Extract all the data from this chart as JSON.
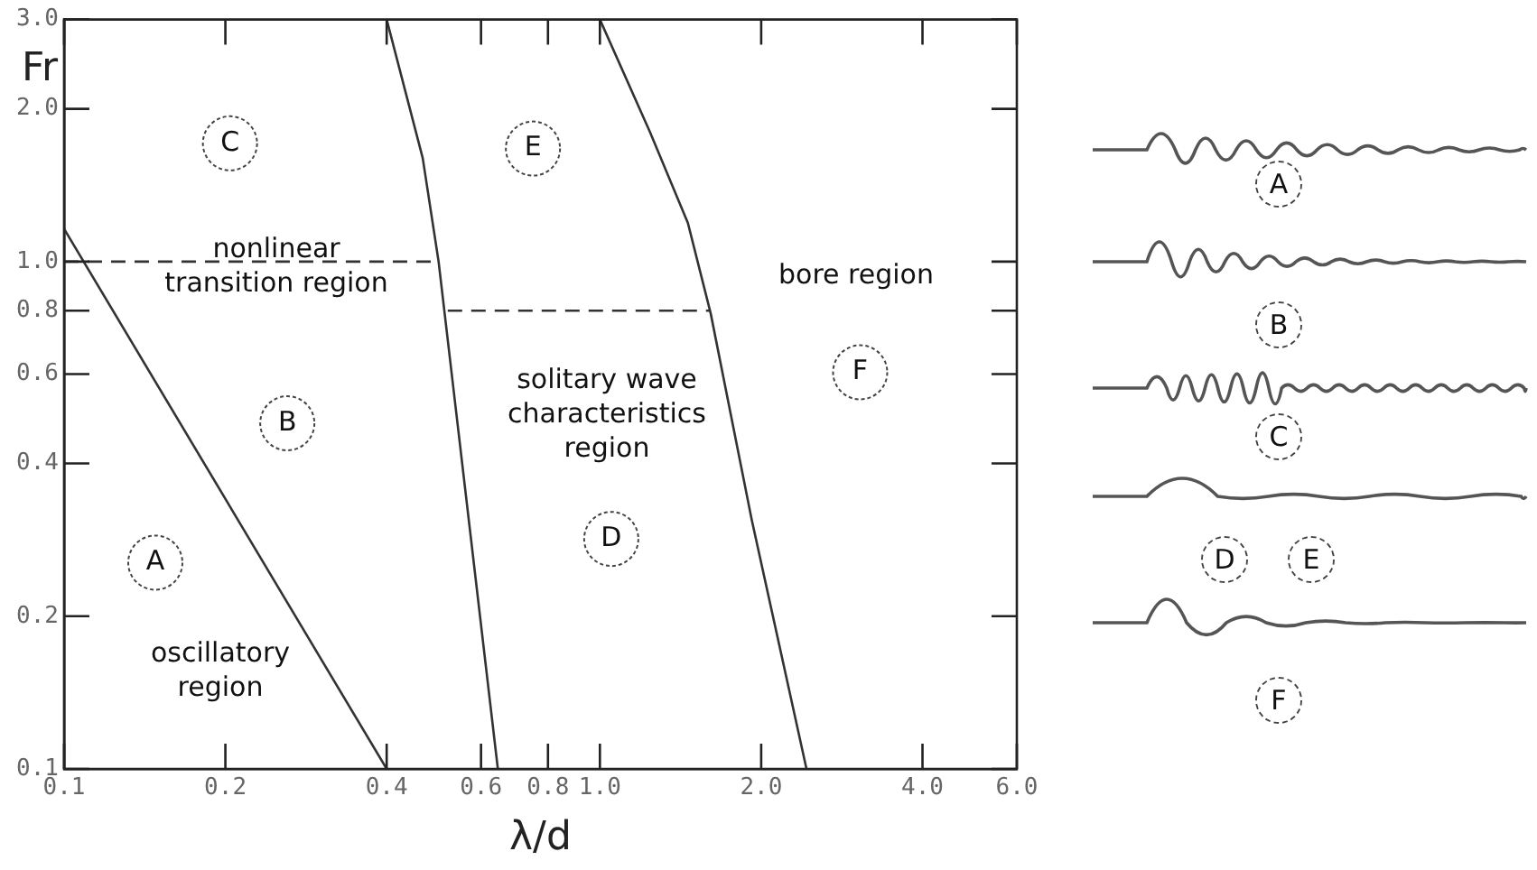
{
  "chart_data": {
    "type": "line",
    "xlabel": "λ/d",
    "ylabel": "Fr",
    "log": "xy",
    "grid": false,
    "legend": false,
    "marker": "none",
    "xlim": [
      0.1,
      6.0
    ],
    "ylim": [
      0.1,
      3.0
    ],
    "xticks": [
      0.1,
      0.2,
      0.4,
      0.6,
      0.8,
      {
        "value": 1,
        "label": "1.0"
      },
      {
        "value": 2,
        "label": "2.0"
      },
      {
        "value": 4,
        "label": "4.0"
      },
      {
        "value": 6,
        "label": "6.0"
      }
    ],
    "yticks": [
      0.1,
      0.2,
      0.4,
      0.6,
      0.8,
      {
        "value": 1,
        "label": "1.0"
      },
      {
        "value": 2,
        "label": "2.0"
      },
      {
        "value": 3,
        "label": "3.0"
      }
    ],
    "series": [
      {
        "color": "#333333",
        "line_style": "solid",
        "x": [
          0.1,
          0.4
        ],
        "values": [
          1.16,
          0.1
        ]
      },
      {
        "color": "#333333",
        "line_style": "solid",
        "x": [
          0.4,
          0.467,
          0.5,
          0.645
        ],
        "values": [
          3.0,
          1.6,
          1.0,
          0.1
        ]
      },
      {
        "color": "#333333",
        "line_style": "solid",
        "x": [
          1.0,
          1.24,
          1.46,
          1.61,
          1.92,
          2.43
        ],
        "values": [
          3.0,
          1.8,
          1.19,
          0.79,
          0.31,
          0.1
        ]
      },
      {
        "color": "#333333",
        "line_style": "dashed",
        "x": [
          0.1,
          0.5
        ],
        "values": [
          1.0,
          1.0
        ]
      },
      {
        "color": "#333333",
        "line_style": "dashed",
        "x": [
          0.52,
          1.61
        ],
        "values": [
          0.8,
          0.8
        ]
      }
    ],
    "annotations": [
      {
        "text": "A",
        "x": 0.148,
        "y": 0.255
      },
      {
        "text": "B",
        "x": 0.261,
        "y": 0.48
      },
      {
        "text": "C",
        "x": 0.204,
        "y": 1.71
      },
      {
        "text": "D",
        "x": 1.05,
        "y": 0.284
      },
      {
        "text": "E",
        "x": 0.75,
        "y": 1.67
      },
      {
        "text": "F",
        "x": 3.06,
        "y": 0.605
      },
      "nonlinear\ntransition region",
      "oscillatory\nregion",
      "solitary wave\ncharacteristics\nregion",
      "bore region",
      "A",
      "B",
      "C",
      "D",
      "E",
      "F"
    ]
  }
}
